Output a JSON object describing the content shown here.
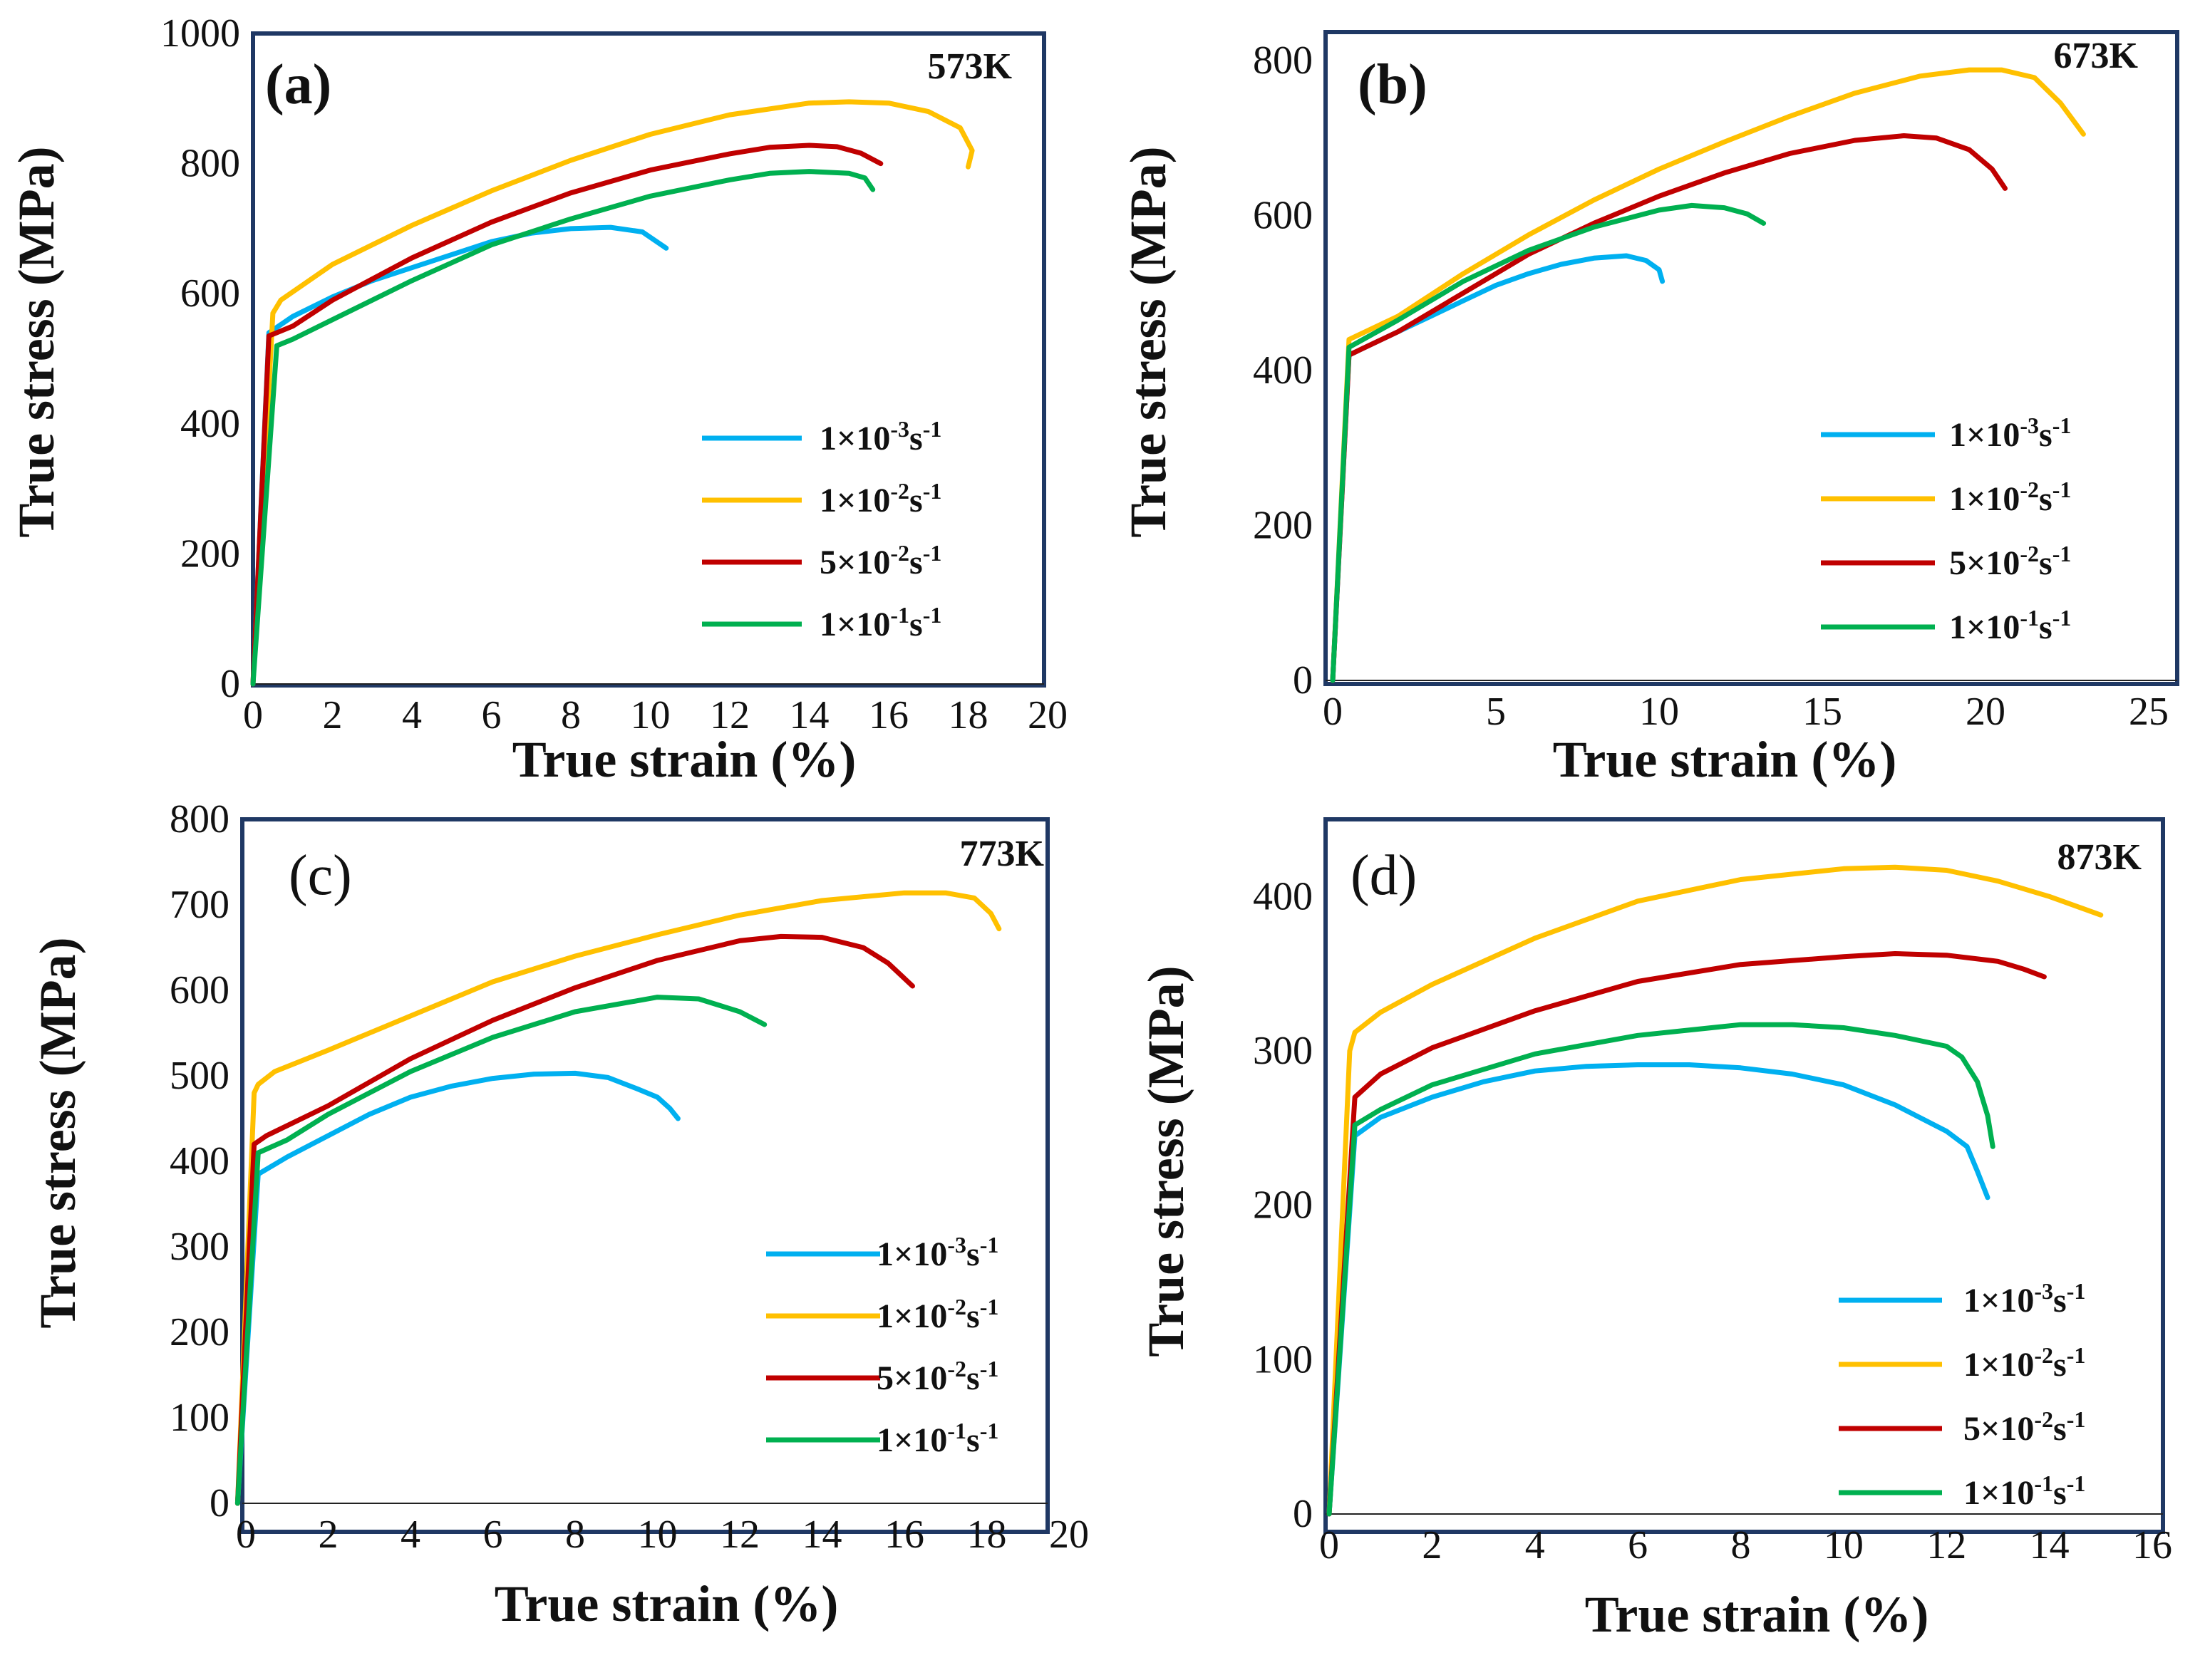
{
  "chart_data": [
    {
      "type": "line",
      "panel_label": "(a)",
      "temperature": "573K",
      "xlabel": "True strain (%)",
      "ylabel": "True stress (MPa)",
      "xlim": [
        0,
        20
      ],
      "ylim": [
        0,
        1000
      ],
      "xticks": [
        0,
        2,
        4,
        6,
        8,
        10,
        12,
        14,
        16,
        18,
        20
      ],
      "yticks": [
        0,
        200,
        400,
        600,
        800,
        1000
      ],
      "series": [
        {
          "name": "1×10⁻³s⁻¹",
          "x": [
            0,
            0.4,
            1,
            2,
            3,
            4,
            5,
            6,
            7,
            8,
            9,
            9.8,
            10.4
          ],
          "y": [
            0,
            540,
            565,
            595,
            620,
            640,
            660,
            680,
            693,
            700,
            702,
            695,
            670
          ]
        },
        {
          "name": "1×10⁻²s⁻¹",
          "x": [
            0,
            0.5,
            0.7,
            2,
            4,
            6,
            8,
            10,
            12,
            14,
            15,
            16,
            17,
            17.8,
            18.1,
            18.0
          ],
          "y": [
            0,
            570,
            590,
            645,
            705,
            758,
            805,
            845,
            875,
            893,
            895,
            893,
            880,
            855,
            820,
            795
          ]
        },
        {
          "name": "5×10⁻²s⁻¹",
          "x": [
            0,
            0.4,
            1,
            2,
            4,
            6,
            8,
            10,
            12,
            13,
            14,
            14.7,
            15.3,
            15.8
          ],
          "y": [
            0,
            535,
            550,
            590,
            655,
            710,
            755,
            790,
            815,
            825,
            828,
            826,
            816,
            800
          ]
        },
        {
          "name": "1×10⁻¹s⁻¹",
          "x": [
            0,
            0.6,
            1,
            2,
            4,
            6,
            8,
            10,
            12,
            13,
            14,
            15,
            15.4,
            15.6
          ],
          "y": [
            0,
            520,
            530,
            560,
            620,
            675,
            715,
            750,
            775,
            785,
            788,
            785,
            778,
            760
          ]
        }
      ]
    },
    {
      "type": "line",
      "panel_label": "(b)",
      "temperature": "673K",
      "xlabel": "True strain (%)",
      "ylabel": "True stress (MPa)",
      "xlim": [
        0,
        25
      ],
      "ylim": [
        0,
        800
      ],
      "xticks": [
        0,
        5,
        10,
        15,
        20,
        25
      ],
      "yticks": [
        0,
        200,
        400,
        600,
        800
      ],
      "series": [
        {
          "name": "1×10⁻³s⁻¹",
          "x": [
            0,
            0.5,
            1,
            2,
            3,
            4,
            5,
            6,
            7,
            8,
            9,
            9.6,
            10.0,
            10.1
          ],
          "y": [
            0,
            420,
            430,
            450,
            470,
            490,
            510,
            525,
            537,
            545,
            548,
            542,
            530,
            515
          ]
        },
        {
          "name": "1×10⁻²s⁻¹",
          "x": [
            0,
            0.5,
            2,
            4,
            6,
            8,
            10,
            12,
            14,
            16,
            18,
            19.5,
            20.5,
            21.5,
            22.3,
            23.0
          ],
          "y": [
            0,
            440,
            470,
            525,
            575,
            620,
            660,
            695,
            728,
            758,
            780,
            788,
            788,
            778,
            745,
            705
          ]
        },
        {
          "name": "5×10⁻²s⁻¹",
          "x": [
            0,
            0.5,
            2,
            4,
            6,
            8,
            10,
            12,
            14,
            16,
            17.5,
            18.5,
            19.5,
            20.2,
            20.6
          ],
          "y": [
            0,
            420,
            450,
            500,
            550,
            590,
            625,
            655,
            680,
            697,
            703,
            700,
            685,
            660,
            635
          ]
        },
        {
          "name": "1×10⁻¹s⁻¹",
          "x": [
            0,
            0.5,
            2,
            4,
            6,
            8,
            10,
            11,
            12,
            12.7,
            13.2
          ],
          "y": [
            0,
            430,
            465,
            515,
            555,
            585,
            607,
            613,
            610,
            602,
            590
          ]
        }
      ]
    },
    {
      "type": "line",
      "panel_label": "(c)",
      "temperature": "773K",
      "xlabel": "True strain (%)",
      "ylabel": "True stress (MPa)",
      "xlim": [
        0,
        20
      ],
      "ylim": [
        0,
        800
      ],
      "xticks": [
        0,
        2,
        4,
        6,
        8,
        10,
        12,
        14,
        16,
        18,
        20
      ],
      "yticks": [
        0,
        100,
        200,
        300,
        400,
        500,
        600,
        700,
        800
      ],
      "series": [
        {
          "name": "1×10⁻³s⁻¹",
          "x": [
            -0.2,
            0.3,
            1,
            2,
            3,
            4,
            5,
            6,
            7,
            8,
            8.8,
            9.5,
            10.0,
            10.3,
            10.5
          ],
          "y": [
            0,
            385,
            405,
            430,
            455,
            475,
            488,
            497,
            502,
            503,
            498,
            485,
            475,
            462,
            450
          ]
        },
        {
          "name": "1×10⁻²s⁻¹",
          "x": [
            -0.2,
            0.2,
            0.3,
            0.7,
            2,
            4,
            6,
            8,
            10,
            12,
            14,
            16,
            17,
            17.7,
            18.1,
            18.3
          ],
          "y": [
            0,
            480,
            490,
            505,
            530,
            570,
            610,
            640,
            665,
            688,
            705,
            714,
            714,
            708,
            690,
            672
          ]
        },
        {
          "name": "5×10⁻²s⁻¹",
          "x": [
            -0.2,
            0.2,
            0.5,
            2,
            4,
            6,
            8,
            10,
            12,
            13,
            14,
            15,
            15.6,
            16.2
          ],
          "y": [
            0,
            420,
            430,
            465,
            520,
            565,
            603,
            635,
            658,
            663,
            662,
            650,
            632,
            605
          ]
        },
        {
          "name": "1×10⁻¹s⁻¹",
          "x": [
            -0.2,
            0.3,
            1,
            2,
            4,
            6,
            8,
            10,
            11,
            12,
            12.6
          ],
          "y": [
            0,
            410,
            425,
            455,
            505,
            545,
            575,
            592,
            590,
            575,
            560
          ]
        }
      ]
    },
    {
      "type": "line",
      "panel_label": "(d)",
      "temperature": "873K",
      "xlabel": "True strain (%)",
      "ylabel": "True stress (MPa)",
      "xlim": [
        0,
        16
      ],
      "ylim": [
        0,
        450
      ],
      "xticks": [
        0,
        2,
        4,
        6,
        8,
        10,
        12,
        14,
        16
      ],
      "yticks": [
        0,
        100,
        200,
        300,
        400
      ],
      "series": [
        {
          "name": "1×10⁻³s⁻¹",
          "x": [
            0,
            0.5,
            1,
            2,
            3,
            4,
            5,
            6,
            7,
            8,
            9,
            10,
            11,
            12,
            12.4,
            12.6,
            12.8
          ],
          "y": [
            0,
            245,
            257,
            270,
            280,
            287,
            290,
            291,
            291,
            289,
            285,
            278,
            265,
            248,
            238,
            222,
            205
          ]
        },
        {
          "name": "1×10⁻²s⁻¹",
          "x": [
            0,
            0.4,
            0.5,
            1,
            2,
            4,
            6,
            8,
            10,
            11,
            12,
            13,
            14,
            15
          ],
          "y": [
            0,
            300,
            312,
            325,
            343,
            373,
            397,
            411,
            418,
            419,
            417,
            410,
            400,
            388
          ]
        },
        {
          "name": "5×10⁻²s⁻¹",
          "x": [
            0,
            0.5,
            1,
            2,
            4,
            6,
            8,
            10,
            11,
            12,
            13,
            13.5,
            13.9
          ],
          "y": [
            0,
            270,
            285,
            302,
            326,
            345,
            356,
            361,
            363,
            362,
            358,
            353,
            348
          ]
        },
        {
          "name": "1×10⁻¹s⁻¹",
          "x": [
            0,
            0.5,
            1,
            2,
            4,
            6,
            8,
            9,
            10,
            11,
            12,
            12.3,
            12.6,
            12.8,
            12.9
          ],
          "y": [
            0,
            252,
            262,
            278,
            298,
            310,
            317,
            317,
            315,
            310,
            303,
            296,
            280,
            258,
            238
          ]
        }
      ]
    }
  ],
  "colors": {
    "series": [
      "#00b0f0",
      "#ffc000",
      "#c00000",
      "#00b050"
    ],
    "frame": "#1f3864",
    "axis": "#222222"
  }
}
